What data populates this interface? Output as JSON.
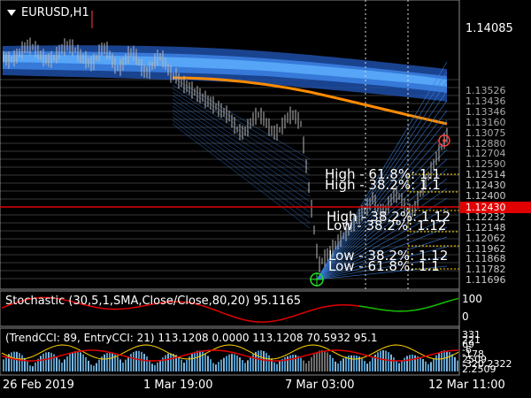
{
  "symbol": "EURUSD,H1",
  "price_axis": {
    "current_price": "1.14085",
    "levels": [
      "1.13526",
      "1.13436",
      "1.13346",
      "1.13160",
      "1.13075",
      "1.12880",
      "1.12704",
      "1.12590",
      "1.12514",
      "1.12430",
      "1.12400",
      "1.12334",
      "1.12232",
      "1.12148",
      "1.12062",
      "1.11962",
      "1.11868",
      "1.11782",
      "1.11696"
    ],
    "highlight_label": "1.12430"
  },
  "fib_labels": {
    "high_618": "High - 61.8%: 1.1",
    "high_382": "High - 38.2%: 1.1",
    "mid_high": "High - 38.2%: 1.12",
    "mid_low": "Low - 38.2%: 1.12",
    "low_382": "Low - 38.2%: 1.12",
    "low_618": "Low - 61.8%: 1.1"
  },
  "stochastic": {
    "title": "Stochastic (30,5,1,SMA,Close/Close,80,20) 95.1165",
    "scale_top": "100",
    "scale_bottom": "0"
  },
  "cci": {
    "title": "(TrendCCI: 89, EntryCCI: 21)  113.1208 0.0000  113.1208 70.5932 95.1",
    "scale_values": [
      "331",
      "221",
      "69",
      "-6",
      "-178",
      "2509",
      "-320.2322",
      "2.2509"
    ]
  },
  "time_axis": [
    "26 Feb 2019",
    "1 Mar 19:00",
    "7 Mar 03:00",
    "12 Mar 11:00"
  ],
  "colors": {
    "background": "#000000",
    "ribbon_dark": "#1f4fa8",
    "ribbon_light": "#4fa6ff",
    "ma_orange": "#ff8c00",
    "red_line": "#e00000",
    "grid_white": "#ffffff",
    "stoch_green": "#00c000",
    "stoch_red": "#e00000",
    "cci_yellow": "#ffd400"
  }
}
